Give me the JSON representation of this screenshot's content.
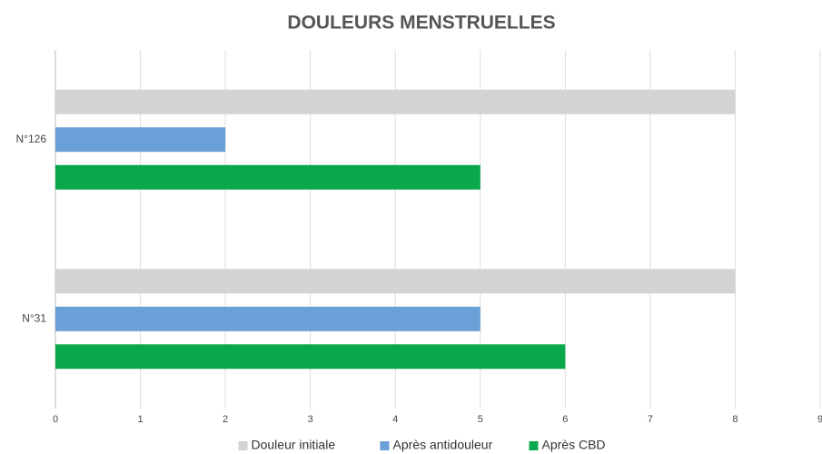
{
  "chart_data": {
    "type": "hbar",
    "title": "DOULEURS MENSTRUELLES",
    "categories": [
      "N°126",
      "N°31"
    ],
    "series": [
      {
        "name": "Douleur initiale",
        "color": "#d3d3d3",
        "values": [
          8,
          8
        ]
      },
      {
        "name": "Après antidouleur",
        "color": "#6a9fd8",
        "values": [
          2,
          5
        ]
      },
      {
        "name": "Après CBD",
        "color": "#0aa84a",
        "values": [
          5,
          6
        ]
      }
    ],
    "xlim": [
      0,
      9
    ],
    "xticks": [
      0,
      1,
      2,
      3,
      4,
      5,
      6,
      7,
      8,
      9
    ],
    "grid": true,
    "legend": "bottom"
  }
}
